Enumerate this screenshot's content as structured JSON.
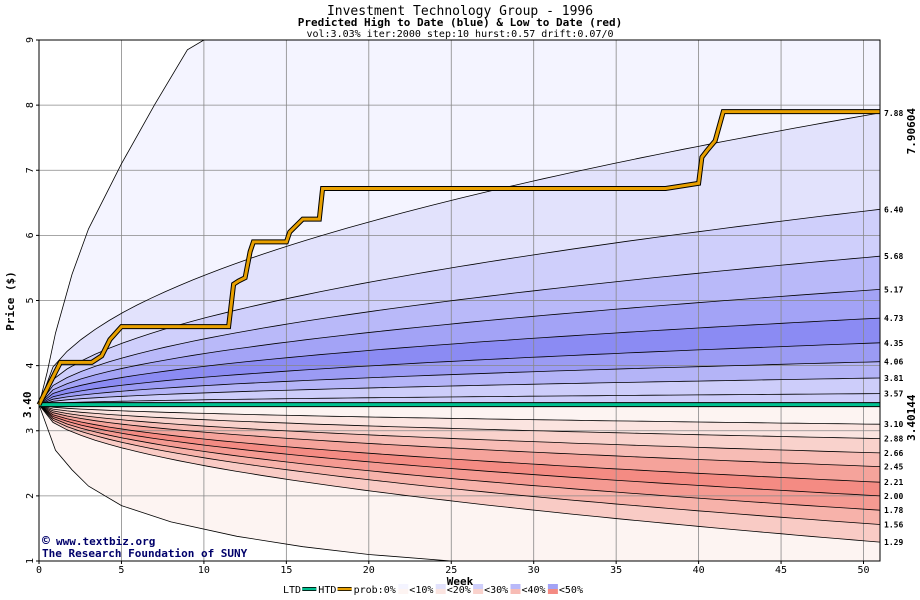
{
  "chart_data": {
    "type": "area",
    "title": "Investment Technology Group - 1996",
    "subtitle": "Predicted High to Date (blue) &  Low to Date (red)",
    "params": "vol:3.03% iter:2000 step:10 hurst:0.57 drift:0.07/0",
    "xlabel": "Week",
    "ylabel": "Price ($)",
    "xlim": [
      0,
      51
    ],
    "ylim": [
      1,
      9
    ],
    "x_ticks": [
      0,
      5,
      10,
      15,
      20,
      25,
      30,
      35,
      40,
      45,
      50
    ],
    "y_ticks": [
      1,
      2,
      3,
      4,
      5,
      6,
      7,
      8,
      9
    ],
    "start_price": 3.4,
    "start_price_label": "3.40",
    "ltd_value_label": "3.40144",
    "htd_value_label": "7.90604",
    "credit_lines": [
      "www.textbiz.org",
      "The Research Foundation of SUNY"
    ],
    "credit_symbol": "©",
    "high_quantiles": [
      {
        "end": 7.88,
        "label": "7.88"
      },
      {
        "end": 6.4,
        "label": "6.40"
      },
      {
        "end": 5.68,
        "label": "5.68"
      },
      {
        "end": 5.17,
        "label": "5.17"
      },
      {
        "end": 4.73,
        "label": "4.73"
      },
      {
        "end": 4.35,
        "label": "4.35"
      },
      {
        "end": 4.06,
        "label": "4.06"
      },
      {
        "end": 3.81,
        "label": "3.81"
      },
      {
        "end": 3.57,
        "label": "3.57"
      }
    ],
    "high_band_colors": [
      "#f4f4ff",
      "#e2e2fc",
      "#cfcffb",
      "#b9b9f9",
      "#a3a3f6",
      "#8b8bf3",
      "#9b9bf4",
      "#b4b4f7",
      "#cdcdfa"
    ],
    "high_outer_curve": {
      "x": [
        0,
        0.5,
        1,
        2,
        3,
        5,
        7,
        9,
        10
      ],
      "y": [
        3.4,
        3.9,
        4.5,
        5.4,
        6.1,
        7.1,
        8.0,
        8.85,
        9.0
      ]
    },
    "low_quantiles": [
      {
        "end": 3.1,
        "label": "3.10"
      },
      {
        "end": 2.88,
        "label": "2.88"
      },
      {
        "end": 2.66,
        "label": "2.66"
      },
      {
        "end": 2.45,
        "label": "2.45"
      },
      {
        "end": 2.21,
        "label": "2.21"
      },
      {
        "end": 2.0,
        "label": "2.00"
      },
      {
        "end": 1.78,
        "label": "1.78"
      },
      {
        "end": 1.56,
        "label": "1.56"
      },
      {
        "end": 1.29,
        "label": "1.29"
      }
    ],
    "low_band_colors": [
      "#fdf4f2",
      "#fbe4e0",
      "#f9d2cc",
      "#f7bcb5",
      "#f5a39b",
      "#f48b83",
      "#f59a92",
      "#f7b2aa",
      "#f9cbc5"
    ],
    "low_outer_curve": {
      "x": [
        0,
        1,
        2,
        3,
        5,
        8,
        12,
        16,
        20,
        25
      ],
      "y": [
        3.4,
        2.7,
        2.4,
        2.15,
        1.85,
        1.6,
        1.38,
        1.22,
        1.1,
        1.0
      ]
    },
    "htd_series": {
      "name": "HTD",
      "x": [
        0,
        0.7,
        1.3,
        3.2,
        3.8,
        4.3,
        5.0,
        11.5,
        11.8,
        12.1,
        12.5,
        12.8,
        13.0,
        15.0,
        15.2,
        16.0,
        17.0,
        17.2,
        38.0,
        40.0,
        40.2,
        40.5,
        41.0,
        41.5,
        51.0
      ],
      "y": [
        3.4,
        3.75,
        4.05,
        4.05,
        4.15,
        4.4,
        4.6,
        4.6,
        5.25,
        5.3,
        5.35,
        5.75,
        5.9,
        5.9,
        6.05,
        6.25,
        6.25,
        6.72,
        6.72,
        6.8,
        7.2,
        7.3,
        7.45,
        7.9,
        7.9
      ]
    },
    "ltd_series": {
      "name": "LTD",
      "x": [
        0,
        51
      ],
      "y": [
        3.40144,
        3.40144
      ]
    },
    "legend": [
      {
        "label": "LTD",
        "kind": "line",
        "color": "#00c090"
      },
      {
        "label": "HTD",
        "kind": "line",
        "color": "#e8a000"
      },
      {
        "label": "prob:0%",
        "kind": "text"
      },
      {
        "label": "<10%",
        "kind": "swatch",
        "top": "#f4f4ff",
        "bottom": "#fdf4f2"
      },
      {
        "label": "<20%",
        "kind": "swatch",
        "top": "#e2e2fc",
        "bottom": "#fbe4e0"
      },
      {
        "label": "<30%",
        "kind": "swatch",
        "top": "#cfcffb",
        "bottom": "#f9d2cc"
      },
      {
        "label": "<40%",
        "kind": "swatch",
        "top": "#b9b9f9",
        "bottom": "#f7bcb5"
      },
      {
        "label": "<50%",
        "kind": "swatch",
        "top": "#a3a3f6",
        "bottom": "#f48b83"
      }
    ],
    "colors": {
      "htd": "#e8a000",
      "ltd": "#00c090",
      "htd_label": "#a07000",
      "ltd_label": "#00a070",
      "grid": "#888888",
      "credit": "#00006a"
    }
  }
}
